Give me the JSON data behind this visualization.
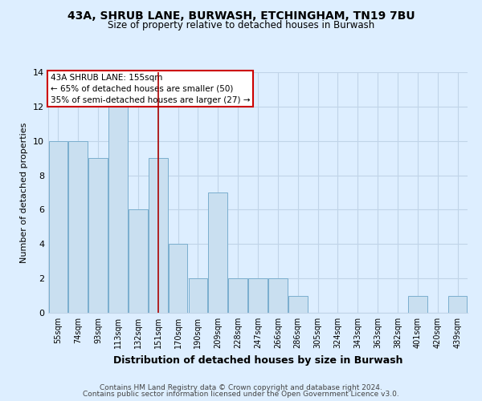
{
  "title1": "43A, SHRUB LANE, BURWASH, ETCHINGHAM, TN19 7BU",
  "title2": "Size of property relative to detached houses in Burwash",
  "xlabel": "Distribution of detached houses by size in Burwash",
  "ylabel": "Number of detached properties",
  "categories": [
    "55sqm",
    "74sqm",
    "93sqm",
    "113sqm",
    "132sqm",
    "151sqm",
    "170sqm",
    "190sqm",
    "209sqm",
    "228sqm",
    "247sqm",
    "266sqm",
    "286sqm",
    "305sqm",
    "324sqm",
    "343sqm",
    "363sqm",
    "382sqm",
    "401sqm",
    "420sqm",
    "439sqm"
  ],
  "values": [
    10,
    10,
    9,
    12,
    6,
    9,
    4,
    2,
    7,
    2,
    2,
    2,
    1,
    0,
    0,
    0,
    0,
    0,
    1,
    0,
    1
  ],
  "bar_color": "#c9dff0",
  "bar_edge_color": "#7aaece",
  "vline_x_index": 5,
  "vline_color": "#aa0000",
  "ylim": [
    0,
    14
  ],
  "yticks": [
    0,
    2,
    4,
    6,
    8,
    10,
    12,
    14
  ],
  "annotation_line1": "43A SHRUB LANE: 155sqm",
  "annotation_line2": "← 65% of detached houses are smaller (50)",
  "annotation_line3": "35% of semi-detached houses are larger (27) →",
  "annotation_box_color": "#ffffff",
  "annotation_box_edge": "#cc0000",
  "footer1": "Contains HM Land Registry data © Crown copyright and database right 2024.",
  "footer2": "Contains public sector information licensed under the Open Government Licence v3.0.",
  "background_color": "#ddeeff",
  "plot_bg_color": "#ddeeff",
  "grid_color": "#c0d4e8"
}
